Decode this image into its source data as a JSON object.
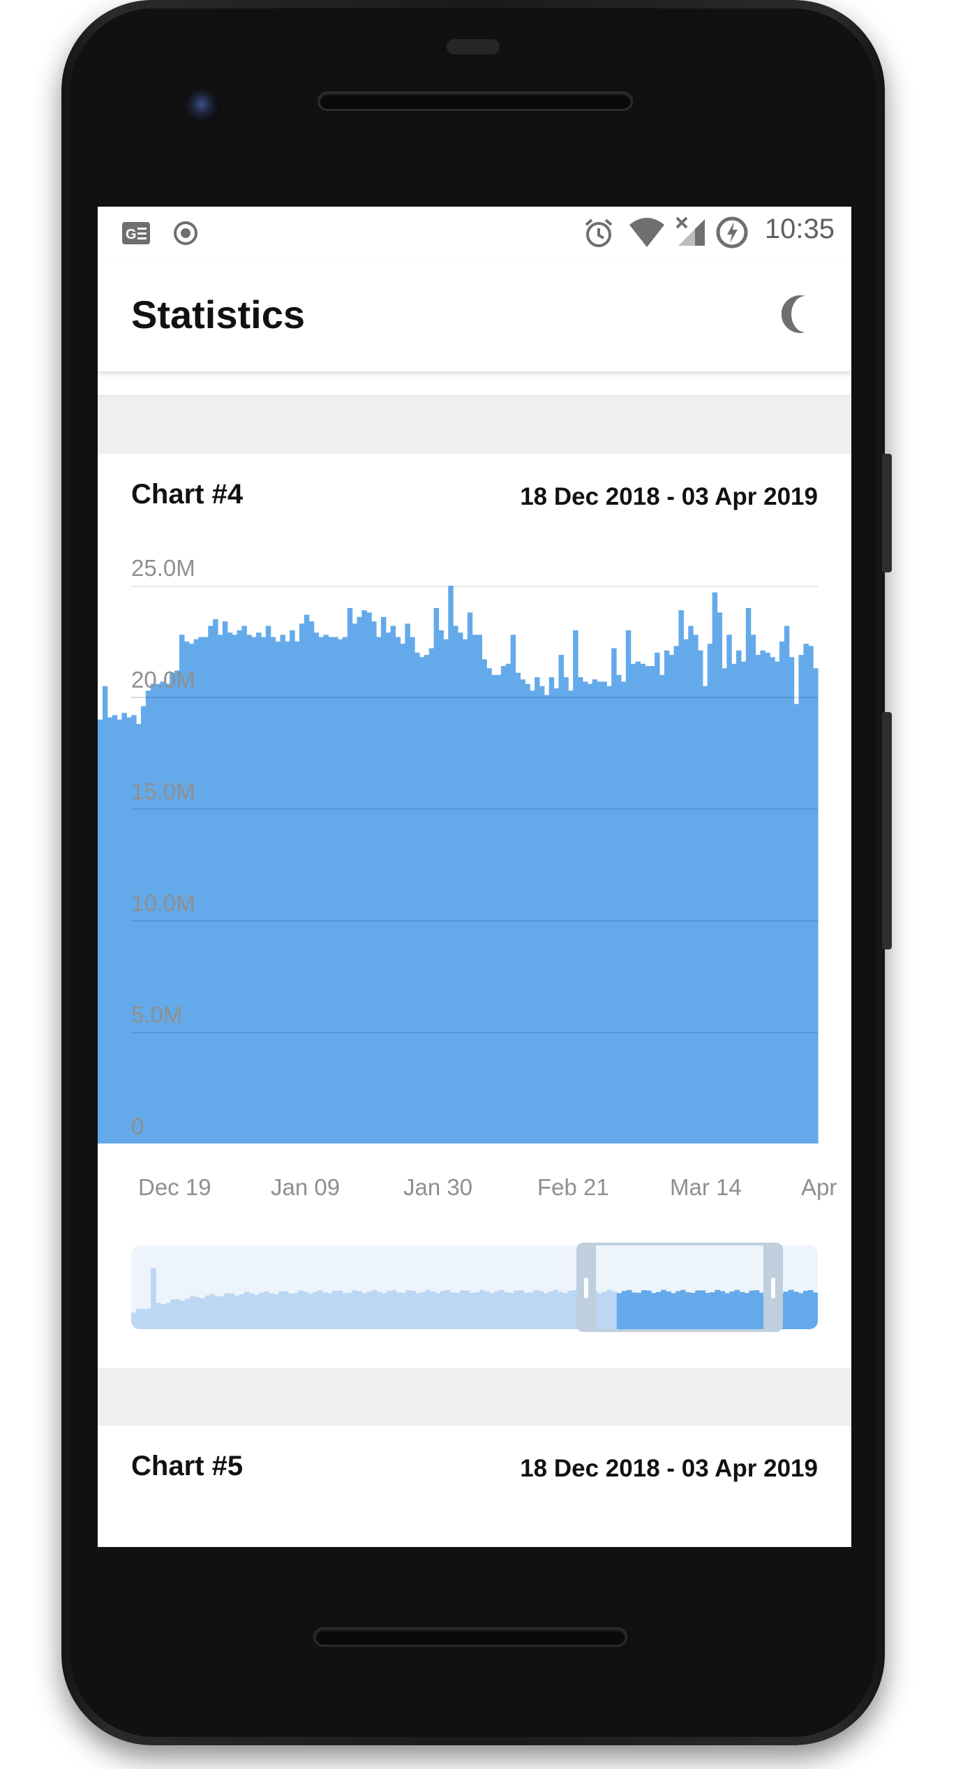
{
  "status_bar": {
    "time": "10:35",
    "left_icons": [
      "news-icon",
      "record-icon"
    ],
    "right_icons": [
      "alarm-icon",
      "wifi-icon",
      "no-signal-icon",
      "battery-charging-icon"
    ]
  },
  "app_bar": {
    "title": "Statistics",
    "theme_icon": "moon-icon"
  },
  "charts": [
    {
      "title": "Chart #4",
      "range": "18 Dec 2018 - 03 Apr 2019",
      "y_labels": [
        "25.0M",
        "20.0M",
        "15.0M",
        "10.0M",
        "5.0M",
        "0"
      ],
      "x_labels": [
        "Dec 19",
        "Jan 09",
        "Jan 30",
        "Feb 21",
        "Mar 14",
        "Apr"
      ]
    },
    {
      "title": "Chart #5",
      "range": "18 Dec 2018 - 03 Apr 2019"
    }
  ],
  "colors": {
    "bar": "#64aaea",
    "bar_preview": "#bcd7f3",
    "grid": "#e5e5e5",
    "label": "#8f8f8f",
    "background_gap": "#efefef"
  },
  "chart_data": {
    "type": "bar",
    "title": "Chart #4",
    "subtitle": "18 Dec 2018 - 03 Apr 2019",
    "ylim": [
      0,
      25000000
    ],
    "y_ticks": [
      0,
      5000000,
      10000000,
      15000000,
      20000000,
      25000000
    ],
    "x_ticks": [
      "Dec 19",
      "Jan 09",
      "Jan 30",
      "Feb 21",
      "Mar 14",
      "Apr"
    ],
    "grid": true,
    "series": [
      {
        "values": [
          19000000,
          20500000,
          19100000,
          19200000,
          19000000,
          19300000,
          19100000,
          19200000,
          18800000,
          19600000,
          20300000,
          20600000,
          20600000,
          20700000,
          20600000,
          21100000,
          21200000,
          22800000,
          22500000,
          22400000,
          22600000,
          22700000,
          22700000,
          23200000,
          23500000,
          22800000,
          23400000,
          22900000,
          22800000,
          23000000,
          23200000,
          22800000,
          22700000,
          22900000,
          22700000,
          23200000,
          22700000,
          22500000,
          22800000,
          22500000,
          23000000,
          22500000,
          23300000,
          23700000,
          23400000,
          22900000,
          22700000,
          22800000,
          22700000,
          22700000,
          22600000,
          22700000,
          24000000,
          23300000,
          23600000,
          23900000,
          23800000,
          23400000,
          22700000,
          23600000,
          22900000,
          23200000,
          22700000,
          22400000,
          23300000,
          22700000,
          22000000,
          21800000,
          21900000,
          22200000,
          24000000,
          23000000,
          22600000,
          25000000,
          23200000,
          22900000,
          22600000,
          23800000,
          22800000,
          22800000,
          21700000,
          21300000,
          21000000,
          21000000,
          21400000,
          21500000,
          22800000,
          21100000,
          20800000,
          20600000,
          20300000,
          20900000,
          20500000,
          20100000,
          20900000,
          20400000,
          21900000,
          20900000,
          20300000,
          23000000,
          20900000,
          20700000,
          20600000,
          20800000,
          20700000,
          20700000,
          20500000,
          22200000,
          21000000,
          20700000,
          23000000,
          21500000,
          21600000,
          21500000,
          21400000,
          21400000,
          22000000,
          21000000,
          22100000,
          21900000,
          22300000,
          23900000,
          22600000,
          23200000,
          22800000,
          22100000,
          20500000,
          22400000,
          24700000,
          23800000,
          21300000,
          22800000,
          21500000,
          22100000,
          21600000,
          24000000,
          22800000,
          21900000,
          22100000,
          22000000,
          21800000,
          21600000,
          22500000,
          23200000,
          21800000,
          19700000,
          21900000,
          22400000,
          22300000,
          21300000
        ],
        "x_start": "18 Dec 2018",
        "x_end": "03 Apr 2019"
      }
    ],
    "navigator": {
      "visible_range_fraction": [
        0.705,
        1.0
      ]
    }
  }
}
